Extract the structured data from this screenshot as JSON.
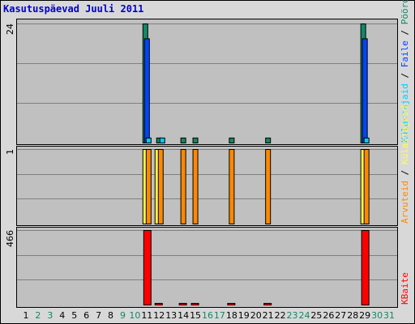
{
  "title": "Kasutuspäevad Juuli 2011",
  "colors": {
    "plot_bg": "#c0c0c0",
    "grid": "#808080",
    "pages": "#ff8800",
    "hits": "#ffff44",
    "visits": "#ffff44",
    "files": "#0044ff",
    "hits_top": "#00ccff",
    "visits_top": "#118866",
    "kbytes": "#ff0000",
    "weekday": "#000000",
    "weekend": "#118866"
  },
  "panels": {
    "top": {
      "scale_label": "24",
      "legend": [
        "Pöördumisi",
        "Faile",
        "Külastajaid"
      ]
    },
    "middle": {
      "scale_label": "1",
      "legend": [
        "Külastajaid",
        "Arvuteid"
      ]
    },
    "bottom": {
      "scale_label": "466",
      "legend": [
        "KBaite"
      ]
    }
  },
  "legend_separator": " / ",
  "chart_data": {
    "type": "bar",
    "title": "Kasutuspäevad Juuli 2011",
    "x": [
      1,
      2,
      3,
      4,
      5,
      6,
      7,
      8,
      9,
      10,
      11,
      12,
      13,
      14,
      15,
      16,
      17,
      18,
      19,
      20,
      21,
      22,
      23,
      24,
      25,
      26,
      27,
      28,
      29,
      30,
      31
    ],
    "weekend_days": [
      2,
      3,
      9,
      10,
      16,
      17,
      23,
      24,
      30,
      31
    ],
    "series": [
      {
        "name": "Pöördumisi",
        "panel": "top",
        "ymax": 24,
        "values": [
          0,
          0,
          0,
          0,
          0,
          0,
          0,
          0,
          0,
          0,
          24,
          1,
          0,
          1,
          1,
          0,
          0,
          1,
          0,
          0,
          1,
          0,
          0,
          0,
          0,
          0,
          0,
          0,
          24,
          0,
          0
        ]
      },
      {
        "name": "Faile",
        "panel": "top",
        "ymax": 24,
        "values": [
          0,
          0,
          0,
          0,
          0,
          0,
          0,
          0,
          0,
          0,
          21,
          0,
          0,
          0,
          0,
          0,
          0,
          0,
          0,
          0,
          0,
          0,
          0,
          0,
          0,
          0,
          0,
          0,
          21,
          0,
          0
        ]
      },
      {
        "name": "Külastajaid",
        "panel": "top",
        "ymax": 24,
        "values": [
          0,
          0,
          0,
          0,
          0,
          0,
          0,
          0,
          0,
          0,
          1,
          1,
          0,
          0,
          0,
          0,
          0,
          0,
          0,
          0,
          0,
          0,
          0,
          0,
          0,
          0,
          0,
          0,
          1,
          0,
          0
        ]
      },
      {
        "name": "Külastajaid",
        "panel": "middle",
        "ymax": 1,
        "values": [
          0,
          0,
          0,
          0,
          0,
          0,
          0,
          0,
          0,
          0,
          1,
          1,
          0,
          0,
          0,
          0,
          0,
          0,
          0,
          0,
          0,
          0,
          0,
          0,
          0,
          0,
          0,
          0,
          1,
          0,
          0
        ]
      },
      {
        "name": "Arvuteid",
        "panel": "middle",
        "ymax": 1,
        "values": [
          0,
          0,
          0,
          0,
          0,
          0,
          0,
          0,
          0,
          0,
          1,
          1,
          0,
          1,
          1,
          0,
          0,
          1,
          0,
          0,
          1,
          0,
          0,
          0,
          0,
          0,
          0,
          0,
          1,
          0,
          0
        ]
      },
      {
        "name": "KBaite",
        "panel": "bottom",
        "ymax": 466,
        "values": [
          0,
          0,
          0,
          0,
          0,
          0,
          0,
          0,
          0,
          0,
          466,
          10,
          0,
          6,
          6,
          0,
          0,
          6,
          0,
          0,
          6,
          0,
          0,
          0,
          0,
          0,
          0,
          0,
          466,
          0,
          0
        ]
      }
    ]
  }
}
